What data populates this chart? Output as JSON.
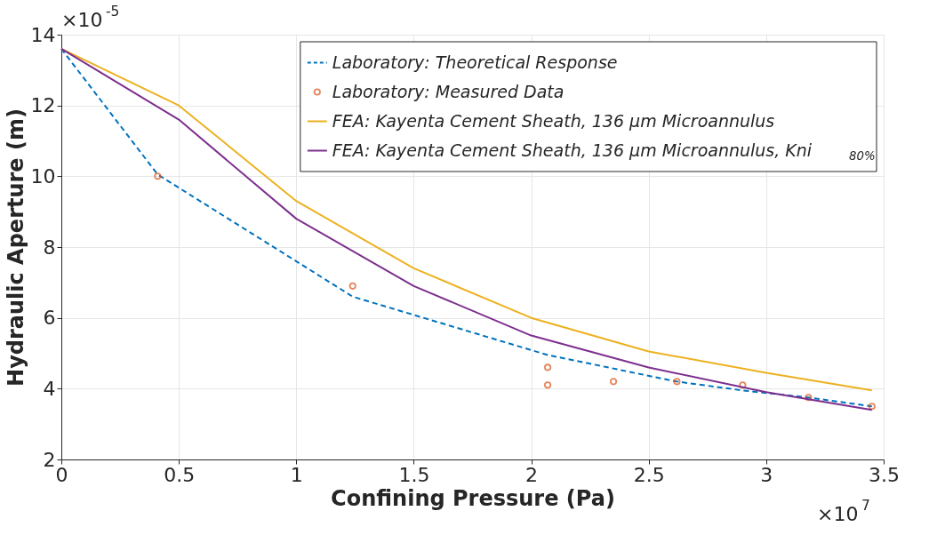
{
  "chart_data": {
    "type": "line",
    "xlabel": "Confining Pressure (Pa)",
    "ylabel": "Hydraulic Aperture (m)",
    "annotations": [
      "×10$^{-5}$",
      "×10$^{7}$"
    ],
    "xlim": [
      0,
      3.5
    ],
    "xticks": [
      0,
      0.5,
      1,
      1.5,
      2,
      2.5,
      3,
      3.5
    ],
    "ylim": [
      2,
      14
    ],
    "yticks": [
      2,
      4,
      6,
      8,
      10,
      12,
      14
    ],
    "grid": true,
    "legend": "top right",
    "series": [
      {
        "name": "Laboratory: Theoretical Response",
        "type": "line",
        "line_style": "dashed",
        "color": "#0072bd",
        "x": [
          0,
          0.41,
          1.24,
          2.07,
          2.62,
          2.9,
          3.18,
          3.45
        ],
        "values": [
          13.6,
          10.05,
          6.6,
          4.95,
          4.2,
          3.95,
          3.75,
          3.5
        ]
      },
      {
        "name": "Laboratory: Measured Data",
        "type": "scatter",
        "marker": "circle",
        "color": "#d95319",
        "x": [
          0.41,
          1.24,
          2.07,
          2.07,
          2.35,
          2.62,
          2.9,
          3.18,
          3.45
        ],
        "values": [
          10.0,
          6.9,
          4.6,
          4.1,
          4.2,
          4.2,
          4.1,
          3.75,
          3.5
        ]
      },
      {
        "name": "FEA: Kayenta Cement Sheath, 136 μm Microannulus",
        "type": "line",
        "line_style": "solid",
        "color": "#edb120",
        "x": [
          0,
          0.5,
          1,
          1.5,
          2,
          2.5,
          3,
          3.45
        ],
        "values": [
          13.6,
          12.0,
          9.3,
          7.4,
          6.0,
          5.05,
          4.45,
          3.95
        ]
      },
      {
        "name": "FEA: Kayenta Cement Sheath, 136 μm Microannulus, Kni$_{80%}$",
        "type": "line",
        "line_style": "solid",
        "color": "#7e2f8e",
        "x": [
          0,
          0.5,
          1,
          1.5,
          2,
          2.5,
          3,
          3.45
        ],
        "values": [
          13.6,
          11.6,
          8.8,
          6.9,
          5.5,
          4.6,
          3.9,
          3.4
        ]
      }
    ]
  }
}
